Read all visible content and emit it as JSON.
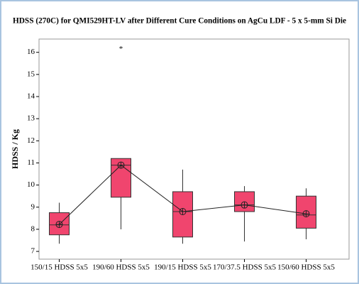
{
  "chart_data": {
    "type": "box",
    "title": "HDSS (270C) for QMI529HT-LV after Different Cure Conditions on AgCu LDF - 5 x 5-mm Si Die",
    "y_label": "HDSS / Kg",
    "categories": [
      "150/15 HDSS 5x5",
      "190/60 HDSS 5x5",
      "190/15 HDSS 5x5",
      "170/37.5 HDSS 5x5",
      "150/60 HDSS 5x5"
    ],
    "color": "#f0456e",
    "boxes": [
      {
        "low": 7.35,
        "q1": 7.75,
        "median": 8.2,
        "q3": 8.75,
        "high": 9.2,
        "mean": 8.22
      },
      {
        "low": 8.0,
        "q1": 9.45,
        "median": 10.9,
        "q3": 11.2,
        "high": 11.2,
        "mean": 10.9,
        "outliers": [
          16.2
        ]
      },
      {
        "low": 7.35,
        "q1": 7.65,
        "median": 8.8,
        "q3": 9.7,
        "high": 10.7,
        "mean": 8.8
      },
      {
        "low": 7.45,
        "q1": 8.8,
        "median": 9.1,
        "q3": 9.7,
        "high": 9.95,
        "mean": 9.1
      },
      {
        "low": 7.55,
        "q1": 8.05,
        "median": 8.65,
        "q3": 9.5,
        "high": 9.85,
        "mean": 8.7
      }
    ],
    "ylim": [
      6.65,
      16.6
    ],
    "yticks": [
      7,
      8,
      9,
      10,
      11,
      12,
      13,
      14,
      15,
      16
    ]
  }
}
